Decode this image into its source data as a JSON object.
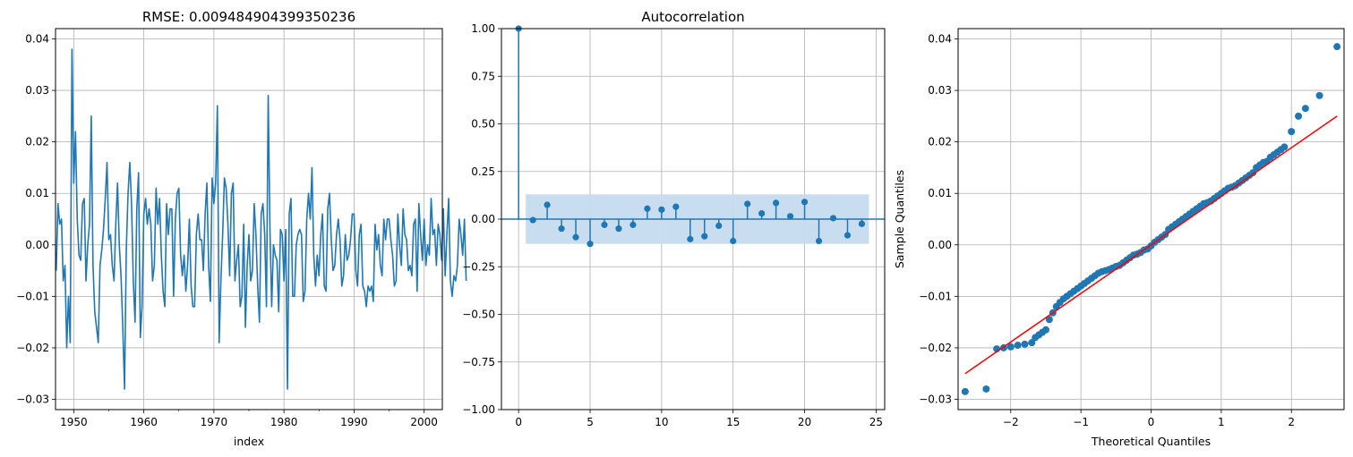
{
  "chart_data": [
    {
      "type": "line",
      "title": "RMSE: 0.009484904399350236",
      "xlabel": "index",
      "ylabel": "",
      "xlim": [
        1947.4,
        2002.6
      ],
      "ylim": [
        -0.032,
        0.042
      ],
      "grid": true,
      "x_ticks": [
        1950,
        1960,
        1970,
        1980,
        1990,
        2000
      ],
      "y_ticks": [
        -0.03,
        -0.02,
        -0.01,
        0.0,
        0.01,
        0.02,
        0.03,
        0.04
      ],
      "y_tick_labels": [
        "−0.03",
        "−0.02",
        "−0.01",
        "0.00",
        "0.01",
        "0.02",
        "0.03",
        "0.04"
      ],
      "color": "#1f77b4",
      "series": [
        {
          "x_start": 1947.5,
          "x_step": 0.25,
          "values": [
            -0.005,
            0.008,
            0.004,
            0.005,
            -0.007,
            -0.004,
            -0.02,
            -0.01,
            -0.019,
            0.038,
            0.012,
            0.022,
            0.005,
            -0.002,
            -0.003,
            0.008,
            0.009,
            -0.007,
            0.0,
            0.004,
            0.025,
            -0.004,
            -0.013,
            -0.016,
            -0.019,
            -0.004,
            -0.001,
            0.003,
            0.009,
            0.016,
            0.001,
            0.002,
            -0.004,
            -0.007,
            0.004,
            0.012,
            0.0,
            -0.006,
            -0.016,
            -0.028,
            -0.001,
            0.01,
            0.016,
            0.008,
            -0.007,
            -0.015,
            0.007,
            0.014,
            -0.018,
            -0.012,
            0.006,
            0.009,
            0.004,
            0.007,
            0.004,
            -0.007,
            -0.004,
            0.011,
            0.004,
            0.009,
            -0.002,
            -0.009,
            -0.012,
            0.008,
            0.002,
            0.007,
            0.007,
            -0.01,
            0.005,
            0.01,
            0.011,
            -0.002,
            -0.006,
            -0.002,
            -0.009,
            -0.004,
            0.005,
            -0.008,
            -0.012,
            -0.012,
            0.002,
            0.006,
            0.001,
            0.001,
            -0.005,
            0.006,
            0.012,
            -0.004,
            -0.011,
            0.013,
            0.008,
            0.012,
            0.027,
            -0.019,
            -0.007,
            0.002,
            0.013,
            0.011,
            0.004,
            -0.006,
            0.01,
            0.012,
            -0.007,
            -0.003,
            0.0,
            -0.012,
            -0.01,
            0.004,
            -0.016,
            -0.004,
            0.002,
            -0.007,
            -0.005,
            0.008,
            0.002,
            -0.008,
            -0.015,
            0.006,
            0.008,
            0.002,
            -0.012,
            0.029,
            0.003,
            -0.012,
            0.0,
            -0.002,
            -0.003,
            -0.013,
            0.003,
            0.002,
            -0.007,
            0.003,
            -0.028,
            0.006,
            0.009,
            -0.01,
            -0.01,
            0.0,
            0.002,
            0.003,
            0.002,
            -0.011,
            -0.009,
            0.005,
            0.01,
            0.005,
            0.015,
            -0.002,
            -0.008,
            -0.002,
            -0.006,
            0.002,
            0.006,
            -0.008,
            -0.009,
            0.007,
            0.01,
            0.001,
            -0.005,
            -0.004,
            0.002,
            0.005,
            0.001,
            -0.008,
            -0.006,
            0.002,
            -0.003,
            -0.002,
            0.001,
            0.006,
            0.006,
            -0.005,
            -0.008,
            0.002,
            0.004,
            -0.008,
            -0.009,
            -0.012,
            -0.008,
            -0.009,
            -0.008,
            -0.011,
            0.004,
            -0.001,
            0.002,
            -0.004,
            -0.006,
            0.005,
            0.001,
            0.005,
            0.005,
            0.001,
            -0.002,
            -0.008,
            -0.007,
            0.006,
            0.0,
            -0.004,
            0.007,
            0.002,
            0.001,
            -0.005,
            -0.004,
            -0.006,
            0.004,
            0.005,
            -0.009,
            0.008,
            0.002,
            -0.003,
            0.005,
            -0.004,
            0.0,
            -0.002,
            0.009,
            0.002,
            0.003,
            -0.004,
            0.004,
            0.002,
            -0.003,
            0.007,
            -0.006,
            0.002,
            0.009,
            -0.007,
            -0.01,
            -0.006,
            -0.007,
            -0.004,
            0.005,
            0.002,
            -0.002,
            0.005,
            -0.007
          ]
        }
      ]
    },
    {
      "type": "stem",
      "title": "Autocorrelation",
      "xlabel": "",
      "ylabel": "",
      "xlim": [
        -1.2,
        25.6
      ],
      "ylim": [
        -1.0,
        1.0
      ],
      "grid": true,
      "x_ticks": [
        0,
        5,
        10,
        15,
        20,
        25
      ],
      "y_ticks": [
        -1.0,
        -0.75,
        -0.5,
        -0.25,
        0.0,
        0.25,
        0.5,
        0.75,
        1.0
      ],
      "y_tick_labels": [
        "−1.00",
        "−0.75",
        "−0.50",
        "−0.25",
        "0.00",
        "0.25",
        "0.50",
        "0.75",
        "1.00"
      ],
      "confidence_band": [
        -0.13,
        0.13
      ],
      "confidence_x": [
        0.5,
        24.5
      ],
      "color": "#1f77b4",
      "band_color": "#c6dbef",
      "lags": [
        0,
        1,
        2,
        3,
        4,
        5,
        6,
        7,
        8,
        9,
        10,
        11,
        12,
        13,
        14,
        15,
        16,
        17,
        18,
        19,
        20,
        21,
        22,
        23,
        24
      ],
      "values": [
        1.0,
        -0.005,
        0.075,
        -0.05,
        -0.095,
        -0.13,
        -0.03,
        -0.05,
        -0.03,
        0.055,
        0.05,
        0.065,
        -0.105,
        -0.09,
        -0.035,
        -0.115,
        0.08,
        0.03,
        0.085,
        0.015,
        0.09,
        -0.115,
        0.005,
        -0.085,
        -0.025
      ]
    },
    {
      "type": "scatter",
      "title": "",
      "xlabel": "Theoretical Quantiles",
      "ylabel": "Sample Quantiles",
      "xlim": [
        -2.75,
        2.75
      ],
      "ylim": [
        -0.032,
        0.042
      ],
      "grid": true,
      "x_ticks": [
        -2,
        -1,
        0,
        1,
        2
      ],
      "x_tick_labels": [
        "−2",
        "−1",
        "0",
        "1",
        "2"
      ],
      "y_ticks": [
        -0.03,
        -0.02,
        -0.01,
        0.0,
        0.01,
        0.02,
        0.03,
        0.04
      ],
      "y_tick_labels": [
        "−0.03",
        "−0.02",
        "−0.01",
        "0.00",
        "0.01",
        "0.02",
        "0.03",
        "0.04"
      ],
      "point_color": "#1f77b4",
      "line_color": "#ff0000",
      "reference_line": [
        [
          -2.65,
          -0.025
        ],
        [
          2.65,
          0.025
        ]
      ],
      "x": [
        -2.65,
        -2.35,
        -2.2,
        -2.1,
        -2.0,
        -1.9,
        -1.8,
        -1.7,
        -1.65,
        -1.6,
        -1.55,
        -1.5,
        -1.45,
        -1.4,
        -1.35,
        -1.3,
        -1.25,
        -1.2,
        -1.15,
        -1.1,
        -1.05,
        -1.0,
        -0.95,
        -0.9,
        -0.85,
        -0.8,
        -0.75,
        -0.7,
        -0.65,
        -0.6,
        -0.55,
        -0.5,
        -0.45,
        -0.4,
        -0.35,
        -0.3,
        -0.25,
        -0.2,
        -0.15,
        -0.1,
        -0.05,
        0.0,
        0.05,
        0.1,
        0.15,
        0.2,
        0.25,
        0.3,
        0.35,
        0.4,
        0.45,
        0.5,
        0.55,
        0.6,
        0.65,
        0.7,
        0.75,
        0.8,
        0.85,
        0.9,
        0.95,
        1.0,
        1.05,
        1.1,
        1.15,
        1.2,
        1.25,
        1.3,
        1.35,
        1.4,
        1.45,
        1.5,
        1.55,
        1.6,
        1.65,
        1.7,
        1.75,
        1.8,
        1.85,
        1.9,
        2.0,
        2.1,
        2.2,
        2.4,
        2.65
      ],
      "y": [
        -0.0285,
        -0.028,
        -0.0202,
        -0.02,
        -0.0198,
        -0.0195,
        -0.0193,
        -0.019,
        -0.018,
        -0.0175,
        -0.017,
        -0.0165,
        -0.0145,
        -0.0132,
        -0.012,
        -0.0112,
        -0.0105,
        -0.01,
        -0.0095,
        -0.009,
        -0.0085,
        -0.008,
        -0.0075,
        -0.007,
        -0.0065,
        -0.006,
        -0.0055,
        -0.0052,
        -0.005,
        -0.0048,
        -0.0045,
        -0.0042,
        -0.004,
        -0.0035,
        -0.003,
        -0.0025,
        -0.002,
        -0.0018,
        -0.0015,
        -0.001,
        -0.0008,
        -0.0002,
        0.0005,
        0.001,
        0.0015,
        0.002,
        0.003,
        0.0035,
        0.004,
        0.0045,
        0.005,
        0.0055,
        0.006,
        0.0065,
        0.007,
        0.0075,
        0.008,
        0.0082,
        0.0085,
        0.009,
        0.0095,
        0.01,
        0.0105,
        0.011,
        0.0112,
        0.0115,
        0.012,
        0.0125,
        0.013,
        0.0135,
        0.014,
        0.015,
        0.0155,
        0.016,
        0.0162,
        0.017,
        0.0175,
        0.018,
        0.0185,
        0.019,
        0.022,
        0.025,
        0.0265,
        0.029,
        0.0385
      ]
    }
  ]
}
